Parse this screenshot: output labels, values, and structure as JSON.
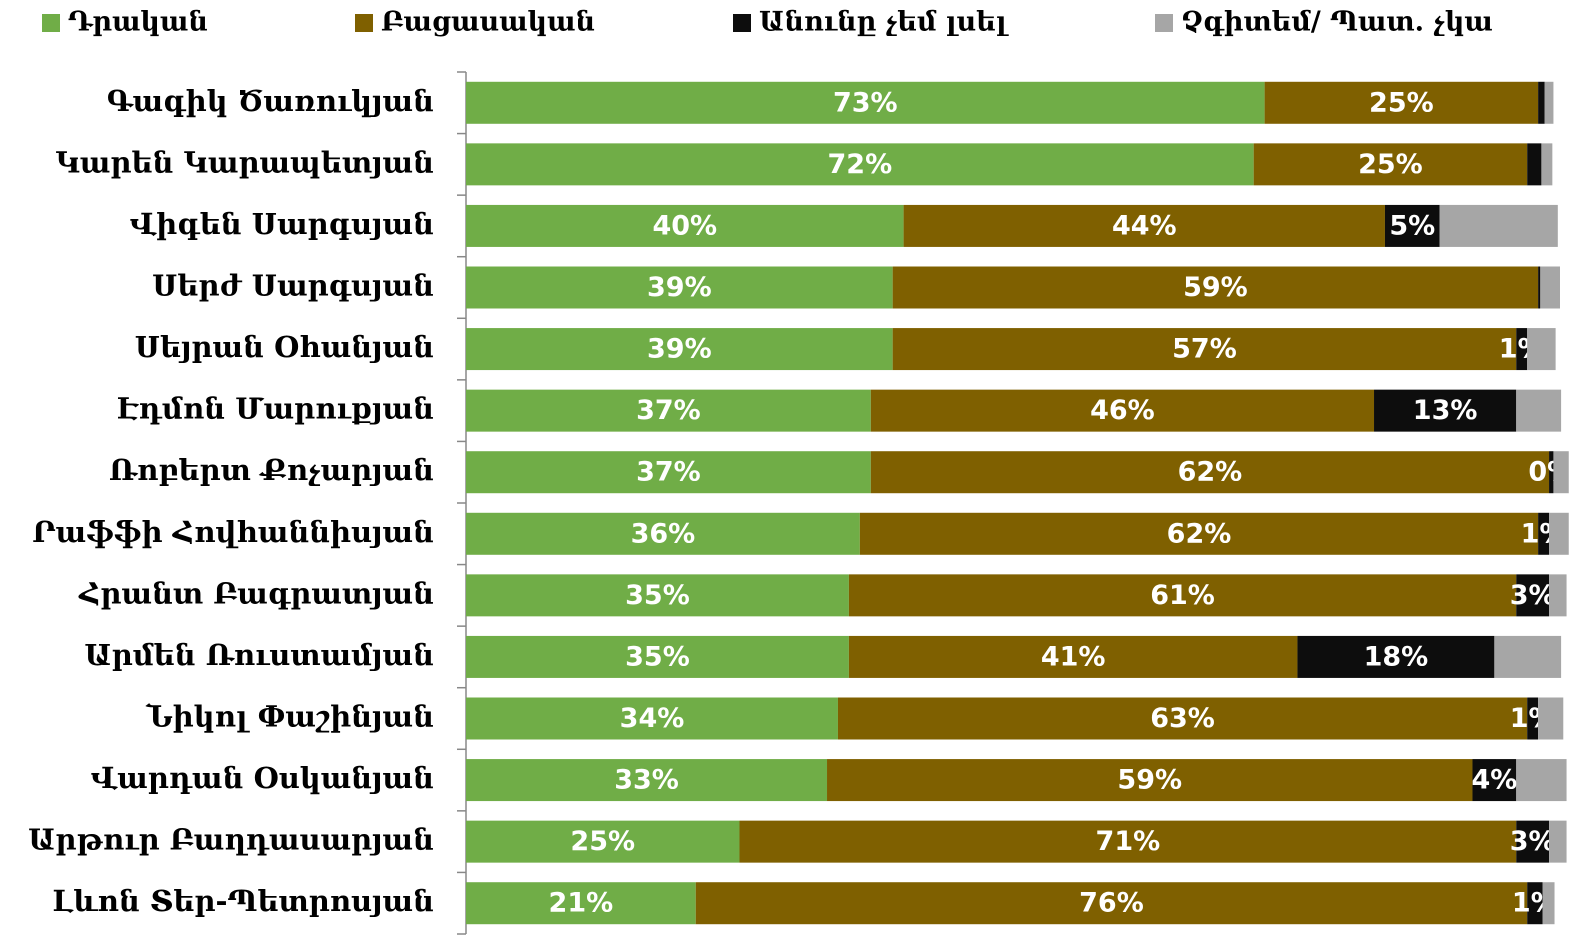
{
  "chart_data": {
    "type": "stacked_barh",
    "categories": [
      "Գագիկ Ծառուկյան",
      "Կարեն Կարապետյան",
      "Վիգեն Սարգսյան",
      "Սերժ Սարգսյան",
      "Սեյրան Օհանյան",
      "Էդմոն Մարուքյան",
      "Ռոբերտ Քոչարյան",
      "Րաֆֆի Հովհաննիսյան",
      "Հրանտ Բագրատյան",
      "Արմեն Ռուստամյան",
      "Նիկոլ Փաշինյան",
      "Վարդան Օսկանյան",
      "Արթուր Բաղդասարյան",
      "Լևոն Տեր-Պետրոսյան"
    ],
    "series": [
      {
        "name": "Դրական",
        "color": "#70ad47",
        "values": [
          73,
          72,
          40,
          39,
          39,
          37,
          37,
          36,
          35,
          35,
          34,
          33,
          25,
          21
        ],
        "value_labels": [
          "73%",
          "72%",
          "40%",
          "39%",
          "39%",
          "37%",
          "37%",
          "36%",
          "35%",
          "35%",
          "34%",
          "33%",
          "25%",
          "21%"
        ]
      },
      {
        "name": "Բացասական",
        "color": "#7f6000",
        "values": [
          25,
          25,
          44,
          59,
          57,
          46,
          62,
          62,
          61,
          41,
          63,
          59,
          71,
          76
        ],
        "value_labels": [
          "25%",
          "25%",
          "44%",
          "59%",
          "57%",
          "46%",
          "62%",
          "62%",
          "61%",
          "41%",
          "63%",
          "59%",
          "71%",
          "76%"
        ]
      },
      {
        "name": "Անունը չեմ լսել",
        "color": "#0d0d0d",
        "values": [
          0.6,
          1.3,
          5,
          0.2,
          1,
          13,
          0.4,
          1,
          3,
          18,
          1,
          4,
          3,
          1.4
        ],
        "value_labels": [
          null,
          null,
          "5%",
          null,
          "1%",
          "13%",
          "0%",
          "1%",
          "3%",
          "18%",
          "1%",
          "4%",
          "3%",
          "1%"
        ]
      },
      {
        "name": "Չգիտեմ/ Պատ. չկա",
        "color": "#a6a6a6",
        "values": [
          0.8,
          1,
          10.8,
          1.8,
          2.6,
          4.1,
          1.4,
          1.8,
          1.6,
          6.1,
          2.3,
          4.6,
          1.6,
          1.1
        ]
      }
    ],
    "xlim": [
      0,
      100
    ]
  }
}
